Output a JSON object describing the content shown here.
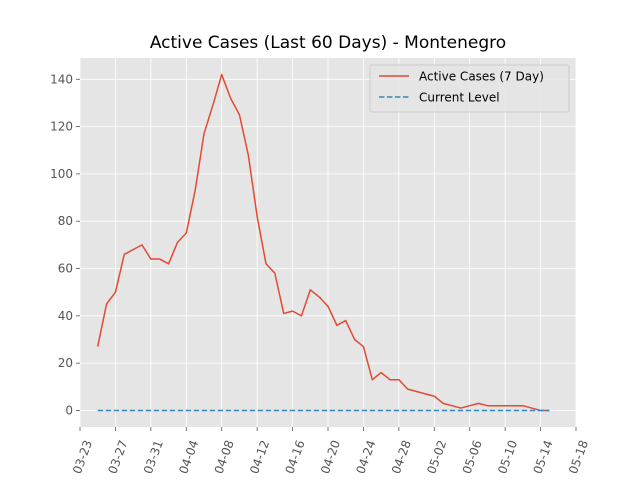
{
  "chart_data": {
    "type": "line",
    "title": "Active Cases (Last 60 Days) - Montenegro",
    "xlabel": "",
    "ylabel": "",
    "x_axis": {
      "type": "date",
      "range": [
        "2020-03-23",
        "2020-05-18"
      ],
      "ticks": [
        "2020-03-23",
        "2020-03-27",
        "2020-03-31",
        "2020-04-04",
        "2020-04-08",
        "2020-04-12",
        "2020-04-16",
        "2020-04-20",
        "2020-04-24",
        "2020-04-28",
        "2020-05-02",
        "2020-05-06",
        "2020-05-10",
        "2020-05-14",
        "2020-05-18"
      ],
      "tick_labels": [
        "03-23",
        "03-27",
        "03-31",
        "04-04",
        "04-08",
        "04-12",
        "04-16",
        "04-20",
        "04-24",
        "04-28",
        "05-02",
        "05-06",
        "05-10",
        "05-14",
        "05-18"
      ]
    },
    "y_axis": {
      "range": [
        -7,
        149
      ],
      "ticks": [
        0,
        20,
        40,
        60,
        80,
        100,
        120,
        140
      ],
      "tick_labels": [
        "0",
        "20",
        "40",
        "60",
        "80",
        "100",
        "120",
        "140"
      ]
    },
    "grid": true,
    "legend": {
      "placement": "top-right"
    },
    "series": [
      {
        "name": "Active Cases (7 Day)",
        "color": "#E24A33",
        "style": "solid",
        "x": [
          "2020-03-25",
          "2020-03-26",
          "2020-03-27",
          "2020-03-28",
          "2020-03-29",
          "2020-03-30",
          "2020-03-31",
          "2020-04-01",
          "2020-04-02",
          "2020-04-03",
          "2020-04-04",
          "2020-04-05",
          "2020-04-06",
          "2020-04-07",
          "2020-04-08",
          "2020-04-09",
          "2020-04-10",
          "2020-04-11",
          "2020-04-12",
          "2020-04-13",
          "2020-04-14",
          "2020-04-15",
          "2020-04-16",
          "2020-04-17",
          "2020-04-18",
          "2020-04-19",
          "2020-04-20",
          "2020-04-21",
          "2020-04-22",
          "2020-04-23",
          "2020-04-24",
          "2020-04-25",
          "2020-04-26",
          "2020-04-27",
          "2020-04-28",
          "2020-04-29",
          "2020-04-30",
          "2020-05-01",
          "2020-05-02",
          "2020-05-03",
          "2020-05-04",
          "2020-05-05",
          "2020-05-06",
          "2020-05-07",
          "2020-05-08",
          "2020-05-09",
          "2020-05-10",
          "2020-05-11",
          "2020-05-12",
          "2020-05-13",
          "2020-05-14",
          "2020-05-15"
        ],
        "values": [
          27,
          45,
          50,
          66,
          68,
          70,
          64,
          64,
          62,
          71,
          75,
          93,
          117,
          129,
          142,
          132,
          125,
          108,
          82,
          62,
          58,
          41,
          42,
          40,
          51,
          48,
          44,
          36,
          38,
          30,
          27,
          13,
          16,
          13,
          13,
          9,
          8,
          7,
          6,
          3,
          2,
          1,
          2,
          3,
          2,
          2,
          2,
          2,
          2,
          1,
          0,
          0
        ]
      },
      {
        "name": "Current Level",
        "color": "#348ABD",
        "style": "dashed",
        "x": [
          "2020-03-25",
          "2020-05-15"
        ],
        "values": [
          0,
          0
        ]
      }
    ]
  }
}
